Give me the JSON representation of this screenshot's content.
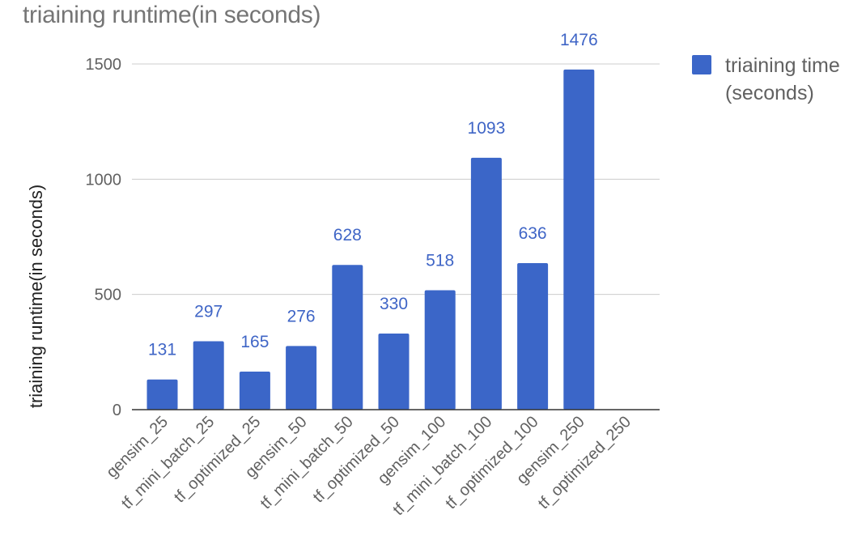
{
  "chart_data": {
    "type": "bar",
    "title": "triaining runtime(in seconds)",
    "ylabel": "triaining runtime(in seconds)",
    "xlabel": "",
    "categories": [
      "gensim_25",
      "tf_mini_batch_25",
      "tf_optimized_25",
      "gensim_50",
      "tf_mini_batch_50",
      "tf_optimized_50",
      "gensim_100",
      "tf_mini_batch_100",
      "tf_optimized_100",
      "gensim_250",
      "tf_optimized_250"
    ],
    "series": [
      {
        "name": "triaining time (seconds)",
        "legend_lines": [
          "triaining time",
          "(seconds)"
        ],
        "color": "#3b66c8",
        "values": [
          131,
          297,
          165,
          276,
          628,
          330,
          518,
          1093,
          636,
          1476,
          null
        ],
        "labels": [
          "131",
          "297",
          "165",
          "276",
          "628",
          "330",
          "518",
          "1093",
          "636",
          "1476",
          ""
        ]
      }
    ],
    "yticks": [
      0,
      500,
      1000,
      1500
    ],
    "ylim": [
      0,
      1500
    ],
    "grid": true,
    "legend": "right"
  }
}
